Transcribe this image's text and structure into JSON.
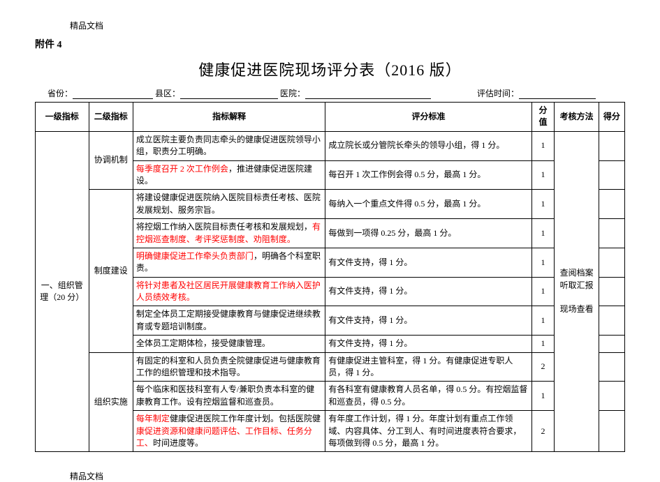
{
  "meta": {
    "header_tag": "精品文档",
    "attachment": "附件 4",
    "title": "健康促进医院现场评分表（2016 版）",
    "footer_tag": "精品文档"
  },
  "fillins": {
    "province_label": "省份：",
    "county_label": "县区：",
    "hospital_label": "医院：",
    "eval_time_label": "评估时间："
  },
  "columns": {
    "l1": "一级指标",
    "l2": "二级指标",
    "desc": "指标解释",
    "crit": "评分标准",
    "fen": "分值",
    "method": "考核方法",
    "score": "得分"
  },
  "level1": {
    "label": "一、组织管理（20 分）",
    "rowspan": 11
  },
  "method_block": {
    "text_lines": [
      "查阅档案",
      "听取汇报",
      "",
      "现场查看"
    ],
    "rowspan": 11
  },
  "groups": [
    {
      "l2": "协调机制",
      "rowspan": 2,
      "rows": [
        {
          "desc": [
            {
              "t": "成立医院主要负责同志牵头的健康促进医院领导小组，职责分工明确。"
            }
          ],
          "crit": [
            {
              "t": "成立院长或分管院长牵头的领导小组，得 1 分。"
            }
          ],
          "fen": "1"
        },
        {
          "desc": [
            {
              "t": "每季度召开 2 次工作例会",
              "red": true
            },
            {
              "t": "，推进健康促进医院建设。"
            }
          ],
          "crit": [
            {
              "t": "每召开 1 次工作例会得 0.5 分，最高 1 分。"
            }
          ],
          "fen": "1"
        }
      ]
    },
    {
      "l2": "制度建设",
      "rowspan": 6,
      "rows": [
        {
          "desc": [
            {
              "t": "将建设健康促进医院纳入医院目标责任考核、医院发展规划、服务宗旨。"
            }
          ],
          "crit": [
            {
              "t": "每纳入一个重点文件得 0.5 分，最高 1 分。"
            }
          ],
          "fen": "1"
        },
        {
          "desc": [
            {
              "t": "将控烟工作纳入医院目标责任考核和发展规划，"
            },
            {
              "t": "有控烟巡查制度、考评奖惩制度、劝阻制度。",
              "red": true
            }
          ],
          "crit": [
            {
              "t": "每做到一项得 0.25 分，最高 1 分。"
            }
          ],
          "fen": "1"
        },
        {
          "desc": [
            {
              "t": "明确健康促进工作牵头负责部门",
              "red": true
            },
            {
              "t": "，明确各个科室职责。"
            }
          ],
          "crit": [
            {
              "t": "有文件支持，得 1 分。"
            }
          ],
          "fen": "1"
        },
        {
          "desc": [
            {
              "t": "将针对患者及社区居民开展健康教育工作纳入医护人员绩效考核。",
              "red": true
            }
          ],
          "crit": [
            {
              "t": "有文件支持，得 1 分。"
            }
          ],
          "fen": "1"
        },
        {
          "desc": [
            {
              "t": "制定全体员工定期接受健康教育与健康促进继续教育或专题培训制度。"
            }
          ],
          "crit": [
            {
              "t": "有文件支持，得 1 分。"
            }
          ],
          "fen": "1"
        },
        {
          "desc": [
            {
              "t": "全体员工定期体检，接受健康管理。"
            }
          ],
          "crit": [
            {
              "t": "有文件支持，得 1 分。"
            }
          ],
          "fen": "1"
        }
      ]
    },
    {
      "l2": "组织实施",
      "rowspan": 3,
      "rows": [
        {
          "desc": [
            {
              "t": "有固定的科室和人员负责全院健康促进与健康教育工作的组织管理和技术指导。"
            }
          ],
          "crit": [
            {
              "t": "有健康促进主管科室，得 1 分。有健康促进专职人员，得 1 分。"
            }
          ],
          "fen": "2"
        },
        {
          "desc": [
            {
              "t": "每个临床和医技科室有人专/兼职负责本科室的健康教育工作。设有控烟监督和巡查员。"
            }
          ],
          "crit": [
            {
              "t": "有各科室有健康教育人员名单，得 0.5 分。有控烟监督和巡查员，得 0.5 分。"
            }
          ],
          "fen": "1"
        },
        {
          "desc": [
            {
              "t": "每年制定",
              "red": true
            },
            {
              "t": "健康促进医院工作年度计划。包括医院健"
            },
            {
              "t": "康促进资源和健康问题评估、工作目标、任务分工、",
              "red": true
            },
            {
              "t": "时间进度等。"
            }
          ],
          "crit": [
            {
              "t": "有年度工作计划，得 1 分。年度计划有重点工作领域、内容具体、分工到人、有时间进度表符合要求，每项做到得 0.5 分，最高 1 分。"
            }
          ],
          "fen": "2"
        }
      ]
    }
  ]
}
